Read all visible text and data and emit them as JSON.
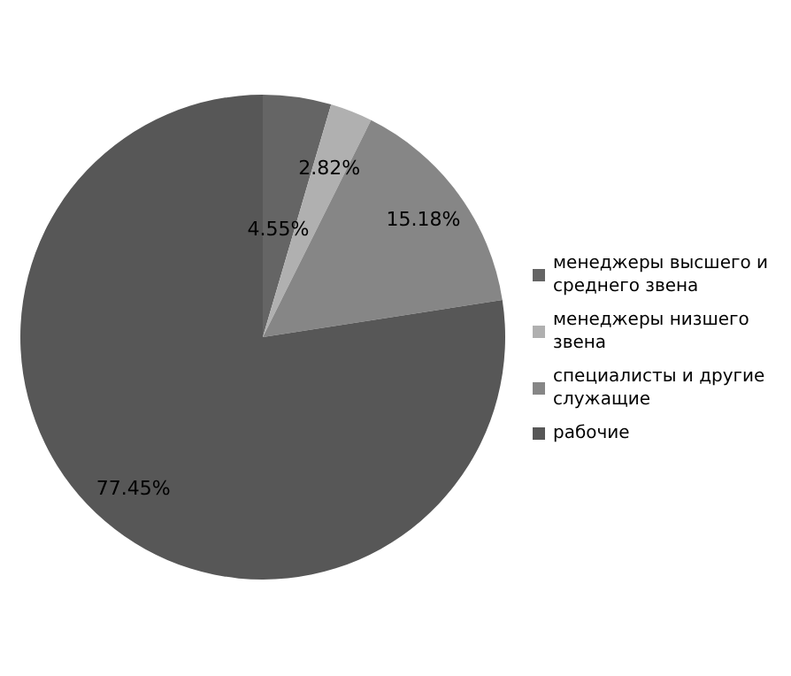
{
  "chart_data": {
    "type": "pie",
    "categories": [
      "менеджеры высшего и среднего звена",
      "менеджеры низшего звена",
      "специалисты и другие служащие",
      "рабочие"
    ],
    "values": [
      4.55,
      2.82,
      15.18,
      77.45
    ],
    "colors": [
      "#656565",
      "#b0b0b0",
      "#868686",
      "#575757"
    ],
    "value_labels": [
      "4.55%",
      "2.82%",
      "15.18%",
      "77.45%"
    ],
    "legend": "right"
  }
}
